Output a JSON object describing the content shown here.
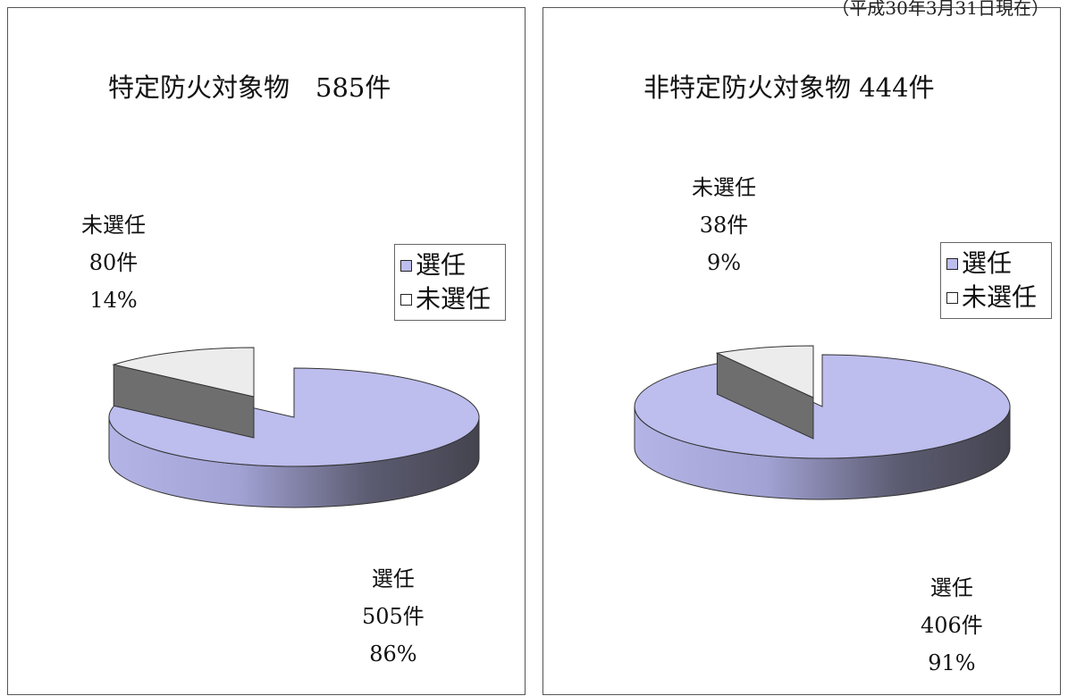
{
  "page": {
    "corner_note": "（平成30年3月31日現在）"
  },
  "legend": {
    "items": [
      {
        "label": "選任",
        "color": "#bdbdee"
      },
      {
        "label": "未選任",
        "color": "#ececec"
      }
    ]
  },
  "chart_data": [
    {
      "type": "pie",
      "title": "特定防火対象物　585件",
      "slices": [
        {
          "label": "選任",
          "count_label": "505件",
          "pct_label": "86%",
          "value": 505,
          "color": "#bdbdee"
        },
        {
          "label": "未選任",
          "count_label": "80件",
          "pct_label": "14%",
          "value": 80,
          "color": "#ececec"
        }
      ],
      "exploded": "未選任",
      "style": "3d"
    },
    {
      "type": "pie",
      "title": "非特定防火対象物 444件",
      "slices": [
        {
          "label": "選任",
          "count_label": "406件",
          "pct_label": "91%",
          "value": 406,
          "color": "#bdbdee"
        },
        {
          "label": "未選任",
          "count_label": "38件",
          "pct_label": "9%",
          "value": 38,
          "color": "#ececec"
        }
      ],
      "exploded": "未選任",
      "style": "3d"
    }
  ]
}
